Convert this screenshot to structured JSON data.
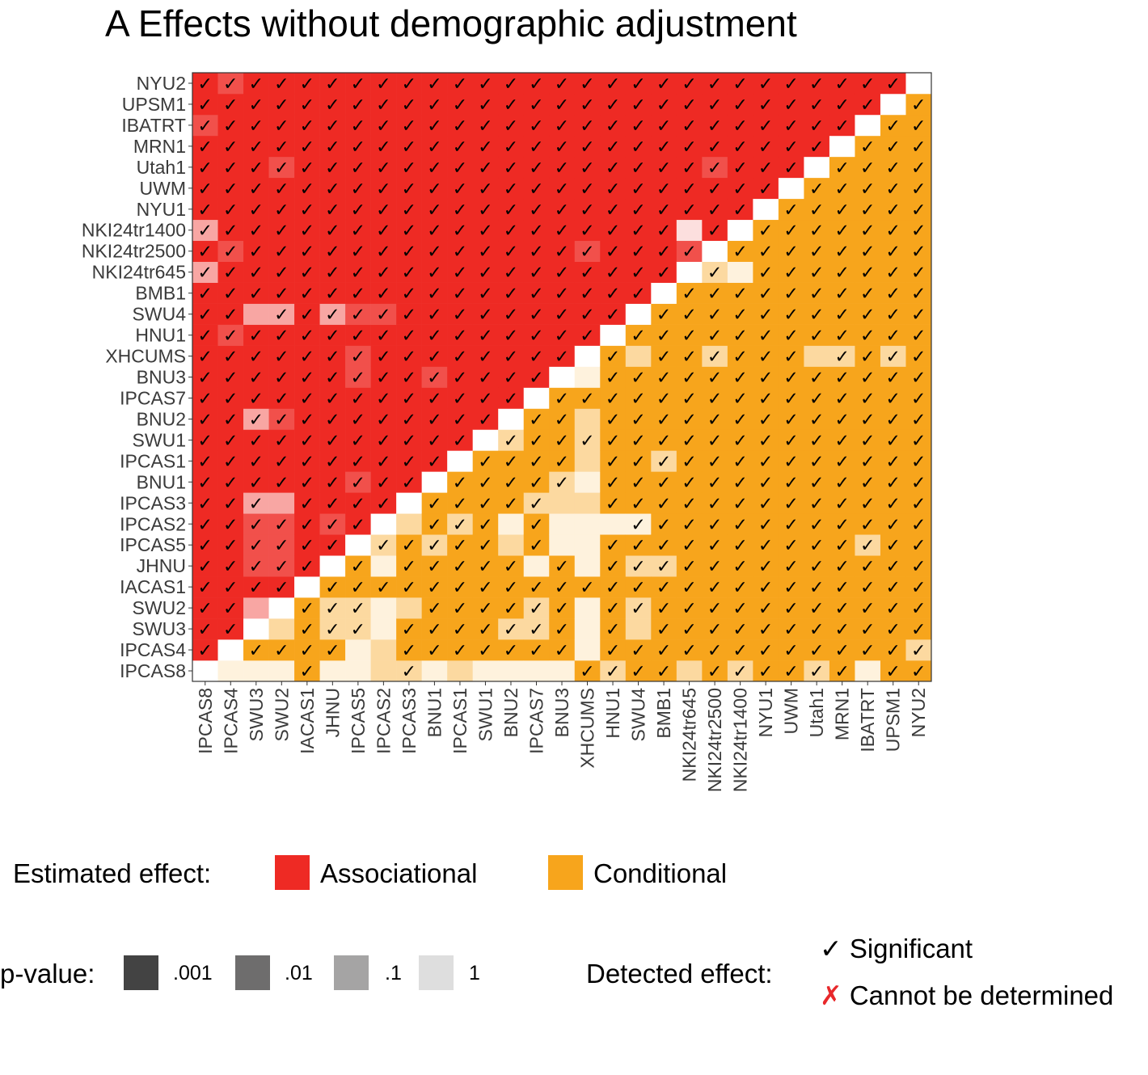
{
  "title": "A  Effects without demographic adjustment",
  "chart_data": {
    "type": "heatmap",
    "sites": [
      "IPCAS8",
      "IPCAS4",
      "SWU3",
      "SWU2",
      "IACAS1",
      "JHNU",
      "IPCAS5",
      "IPCAS2",
      "IPCAS3",
      "BNU1",
      "IPCAS1",
      "SWU1",
      "BNU2",
      "IPCAS7",
      "BNU3",
      "XHCUMS",
      "HNU1",
      "SWU4",
      "BMB1",
      "NKI24tr645",
      "NKI24tr2500",
      "NKI24tr1400",
      "NYU1",
      "UWM",
      "Utah1",
      "MRN1",
      "IBATRT",
      "UPSM1",
      "NYU2"
    ],
    "x_order": "left-to-right",
    "y_order": "bottom-to-top",
    "upper_triangle": "Associational",
    "lower_triangle": "Conditional",
    "diagonal": "empty",
    "weak_cells": [
      {
        "x": "IPCAS8",
        "y": "IBATRT",
        "p": 0.01,
        "sig": true
      },
      {
        "x": "IPCAS8",
        "y": "NKI24tr1400",
        "p": 0.1,
        "sig": true
      },
      {
        "x": "IPCAS8",
        "y": "NKI24tr645",
        "p": 0.1,
        "sig": true
      },
      {
        "x": "IPCAS4",
        "y": "NYU2",
        "p": 0.01,
        "sig": true
      },
      {
        "x": "IPCAS4",
        "y": "NKI24tr2500",
        "p": 0.01,
        "sig": true
      },
      {
        "x": "IPCAS4",
        "y": "HNU1",
        "p": 0.01,
        "sig": true
      },
      {
        "x": "SWU2",
        "y": "Utah1",
        "p": 0.01,
        "sig": true
      },
      {
        "x": "SWU3",
        "y": "SWU4",
        "p": 0.1,
        "sig": false
      },
      {
        "x": "SWU2",
        "y": "SWU4",
        "p": 0.1,
        "sig": true
      },
      {
        "x": "JHNU",
        "y": "SWU4",
        "p": 0.1,
        "sig": true
      },
      {
        "x": "IPCAS5",
        "y": "SWU4",
        "p": 0.01,
        "sig": true
      },
      {
        "x": "IPCAS2",
        "y": "SWU4",
        "p": 0.01,
        "sig": true
      },
      {
        "x": "IPCAS5",
        "y": "XHCUMS",
        "p": 0.01,
        "sig": true
      },
      {
        "x": "IPCAS5",
        "y": "BNU3",
        "p": 0.01,
        "sig": true
      },
      {
        "x": "BNU1",
        "y": "BNU3",
        "p": 0.01,
        "sig": true
      },
      {
        "x": "SWU3",
        "y": "BNU2",
        "p": 0.1,
        "sig": true
      },
      {
        "x": "SWU2",
        "y": "BNU2",
        "p": 0.01,
        "sig": true
      },
      {
        "x": "IPCAS5",
        "y": "BNU1",
        "p": 0.01,
        "sig": true
      },
      {
        "x": "SWU3",
        "y": "IPCAS3",
        "p": 0.1,
        "sig": true
      },
      {
        "x": "SWU2",
        "y": "IPCAS3",
        "p": 0.1,
        "sig": false
      },
      {
        "x": "SWU3",
        "y": "IPCAS2",
        "p": 0.01,
        "sig": true
      },
      {
        "x": "SWU2",
        "y": "IPCAS2",
        "p": 0.01,
        "sig": true
      },
      {
        "x": "JHNU",
        "y": "IPCAS2",
        "p": 0.01,
        "sig": true
      },
      {
        "x": "SWU3",
        "y": "IPCAS5",
        "p": 0.01,
        "sig": true
      },
      {
        "x": "SWU2",
        "y": "IPCAS5",
        "p": 0.01,
        "sig": true
      },
      {
        "x": "SWU3",
        "y": "JHNU",
        "p": 0.01,
        "sig": true
      },
      {
        "x": "SWU2",
        "y": "JHNU",
        "p": 0.01,
        "sig": true
      },
      {
        "x": "NKI24tr645",
        "y": "NKI24tr1400",
        "p": 1,
        "sig": false
      },
      {
        "x": "NKI24tr645",
        "y": "NKI24tr2500",
        "p": 0.01,
        "sig": true
      },
      {
        "x": "NKI24tr2500",
        "y": "Utah1",
        "p": 0.01,
        "sig": true
      },
      {
        "x": "XHCUMS",
        "y": "NKI24tr2500",
        "p": 0.01,
        "sig": true
      },
      {
        "x": "SWU3",
        "y": "SWU2",
        "p": 0.1,
        "sig": false
      },
      {
        "x": "SWU2",
        "y": "SWU3",
        "p": 0.1,
        "sig": false
      },
      {
        "x": "NKI24tr2500",
        "y": "NKI24tr645",
        "p": 0.1,
        "sig": true
      },
      {
        "x": "NKI24tr1400",
        "y": "NKI24tr645",
        "p": 1,
        "sig": false
      },
      {
        "x": "XHCUMS",
        "y": "BNU3",
        "p": 1,
        "sig": false
      },
      {
        "x": "SWU4",
        "y": "XHCUMS",
        "p": 0.1,
        "sig": false
      },
      {
        "x": "NKI24tr2500",
        "y": "XHCUMS",
        "p": 0.1,
        "sig": true
      },
      {
        "x": "Utah1",
        "y": "XHCUMS",
        "p": 0.1,
        "sig": false
      },
      {
        "x": "MRN1",
        "y": "XHCUMS",
        "p": 0.1,
        "sig": true
      },
      {
        "x": "UPSM1",
        "y": "XHCUMS",
        "p": 0.1,
        "sig": true
      },
      {
        "x": "XHCUMS",
        "y": "BNU2",
        "p": 0.1,
        "sig": false
      },
      {
        "x": "BNU2",
        "y": "SWU1",
        "p": 0.1,
        "sig": true
      },
      {
        "x": "XHCUMS",
        "y": "SWU1",
        "p": 0.1,
        "sig": true
      },
      {
        "x": "XHCUMS",
        "y": "IPCAS1",
        "p": 0.1,
        "sig": false
      },
      {
        "x": "BMB1",
        "y": "IPCAS1",
        "p": 0.1,
        "sig": true
      },
      {
        "x": "XHCUMS",
        "y": "BNU1",
        "p": 1,
        "sig": false
      },
      {
        "x": "BNU3",
        "y": "BNU1",
        "p": 0.1,
        "sig": true
      },
      {
        "x": "IPCAS7",
        "y": "IPCAS3",
        "p": 0.1,
        "sig": true
      },
      {
        "x": "BNU3",
        "y": "IPCAS3",
        "p": 0.1,
        "sig": false
      },
      {
        "x": "XHCUMS",
        "y": "IPCAS3",
        "p": 0.1,
        "sig": false
      },
      {
        "x": "IPCAS3",
        "y": "IPCAS2",
        "p": 0.1,
        "sig": false
      },
      {
        "x": "IPCAS1",
        "y": "IPCAS2",
        "p": 0.1,
        "sig": true
      },
      {
        "x": "BNU2",
        "y": "IPCAS2",
        "p": 1,
        "sig": false
      },
      {
        "x": "BNU3",
        "y": "IPCAS2",
        "p": 1,
        "sig": false
      },
      {
        "x": "XHCUMS",
        "y": "IPCAS2",
        "p": 1,
        "sig": false
      },
      {
        "x": "HNU1",
        "y": "IPCAS2",
        "p": 1,
        "sig": false
      },
      {
        "x": "SWU4",
        "y": "IPCAS2",
        "p": 1,
        "sig": true
      },
      {
        "x": "IPCAS2",
        "y": "IPCAS5",
        "p": 0.1,
        "sig": true
      },
      {
        "x": "BNU1",
        "y": "IPCAS5",
        "p": 0.1,
        "sig": true
      },
      {
        "x": "BNU2",
        "y": "IPCAS5",
        "p": 0.1,
        "sig": false
      },
      {
        "x": "BNU3",
        "y": "IPCAS5",
        "p": 1,
        "sig": false
      },
      {
        "x": "XHCUMS",
        "y": "IPCAS5",
        "p": 1,
        "sig": false
      },
      {
        "x": "IBATRT",
        "y": "IPCAS5",
        "p": 0.1,
        "sig": true
      },
      {
        "x": "IPCAS2",
        "y": "JHNU",
        "p": 1,
        "sig": false
      },
      {
        "x": "IPCAS7",
        "y": "JHNU",
        "p": 1,
        "sig": false
      },
      {
        "x": "XHCUMS",
        "y": "JHNU",
        "p": 1,
        "sig": false
      },
      {
        "x": "SWU4",
        "y": "JHNU",
        "p": 0.1,
        "sig": true
      },
      {
        "x": "BMB1",
        "y": "JHNU",
        "p": 0.1,
        "sig": true
      },
      {
        "x": "SWU3",
        "y": "SWU2",
        "p": 0.1,
        "sig": false
      },
      {
        "x": "JHNU",
        "y": "SWU2",
        "p": 0.1,
        "sig": true
      },
      {
        "x": "IPCAS5",
        "y": "SWU2",
        "p": 0.1,
        "sig": true
      },
      {
        "x": "IPCAS2",
        "y": "SWU2",
        "p": 1,
        "sig": false
      },
      {
        "x": "IPCAS3",
        "y": "SWU2",
        "p": 0.1,
        "sig": false
      },
      {
        "x": "IPCAS7",
        "y": "SWU2",
        "p": 0.1,
        "sig": true
      },
      {
        "x": "XHCUMS",
        "y": "SWU2",
        "p": 1,
        "sig": false
      },
      {
        "x": "SWU4",
        "y": "SWU2",
        "p": 0.1,
        "sig": true
      },
      {
        "x": "SWU2",
        "y": "SWU3",
        "p": 0.1,
        "sig": false
      },
      {
        "x": "JHNU",
        "y": "SWU3",
        "p": 0.1,
        "sig": true
      },
      {
        "x": "IPCAS5",
        "y": "SWU3",
        "p": 0.1,
        "sig": true
      },
      {
        "x": "IPCAS2",
        "y": "SWU3",
        "p": 1,
        "sig": false
      },
      {
        "x": "BNU2",
        "y": "SWU3",
        "p": 0.1,
        "sig": true
      },
      {
        "x": "IPCAS7",
        "y": "SWU3",
        "p": 0.1,
        "sig": true
      },
      {
        "x": "XHCUMS",
        "y": "SWU3",
        "p": 1,
        "sig": false
      },
      {
        "x": "SWU4",
        "y": "SWU3",
        "p": 0.1,
        "sig": false
      },
      {
        "x": "IPCAS5",
        "y": "IPCAS4",
        "p": 1,
        "sig": false
      },
      {
        "x": "IPCAS2",
        "y": "IPCAS4",
        "p": 0.1,
        "sig": false
      },
      {
        "x": "XHCUMS",
        "y": "IPCAS4",
        "p": 1,
        "sig": false
      },
      {
        "x": "NYU2",
        "y": "IPCAS4",
        "p": 0.1,
        "sig": true
      },
      {
        "x": "IPCAS4",
        "y": "IPCAS8",
        "p": 1,
        "sig": false
      },
      {
        "x": "SWU3",
        "y": "IPCAS8",
        "p": 1,
        "sig": false
      },
      {
        "x": "SWU2",
        "y": "IPCAS8",
        "p": 1,
        "sig": false
      },
      {
        "x": "JHNU",
        "y": "IPCAS8",
        "p": 1,
        "sig": false
      },
      {
        "x": "IPCAS5",
        "y": "IPCAS8",
        "p": 1,
        "sig": false
      },
      {
        "x": "IPCAS2",
        "y": "IPCAS8",
        "p": 0.1,
        "sig": false
      },
      {
        "x": "IPCAS3",
        "y": "IPCAS8",
        "p": 0.1,
        "sig": true
      },
      {
        "x": "BNU1",
        "y": "IPCAS8",
        "p": 1,
        "sig": false
      },
      {
        "x": "IPCAS1",
        "y": "IPCAS8",
        "p": 0.1,
        "sig": false
      },
      {
        "x": "SWU1",
        "y": "IPCAS8",
        "p": 1,
        "sig": false
      },
      {
        "x": "BNU2",
        "y": "IPCAS8",
        "p": 1,
        "sig": false
      },
      {
        "x": "IPCAS7",
        "y": "IPCAS8",
        "p": 1,
        "sig": false
      },
      {
        "x": "BNU3",
        "y": "IPCAS8",
        "p": 1,
        "sig": false
      },
      {
        "x": "HNU1",
        "y": "IPCAS8",
        "p": 0.1,
        "sig": true
      },
      {
        "x": "NKI24tr645",
        "y": "IPCAS8",
        "p": 0.1,
        "sig": false
      },
      {
        "x": "NKI24tr1400",
        "y": "IPCAS8",
        "p": 0.1,
        "sig": true
      },
      {
        "x": "Utah1",
        "y": "IPCAS8",
        "p": 0.1,
        "sig": true
      },
      {
        "x": "IBATRT",
        "y": "IPCAS8",
        "p": 1,
        "sig": false
      }
    ],
    "default_cell": {
      "p": 0.001,
      "sig": true
    }
  },
  "legend": {
    "effect_title": "Estimated effect:",
    "effect_items": [
      {
        "label": "Associational",
        "color": "#ee2a24"
      },
      {
        "label": "Conditional",
        "color": "#f7a51c"
      }
    ],
    "pvalue_title": "p-value:",
    "pvalue_items": [
      {
        "label": ".001",
        "color": "#434343"
      },
      {
        "label": ".01",
        "color": "#6e6d6d"
      },
      {
        "label": ".1",
        "color": "#a5a4a4"
      },
      {
        "label": "1",
        "color": "#dedede"
      }
    ],
    "detected_title": "Detected effect:",
    "detected_items": [
      {
        "symbol": "✓",
        "label": "Significant",
        "color": "#000000"
      },
      {
        "symbol": "✗",
        "label": "Cannot be determined",
        "color": "#e8282b"
      }
    ]
  }
}
